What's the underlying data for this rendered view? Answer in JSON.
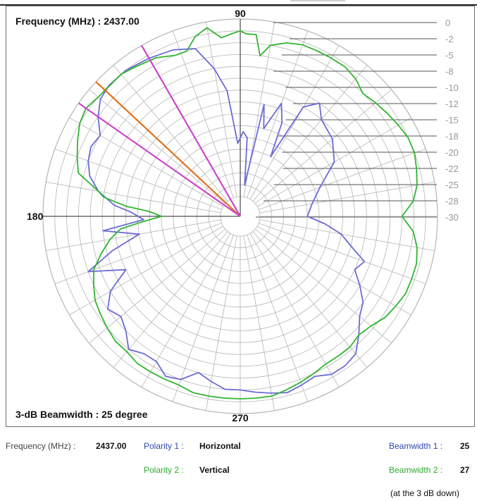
{
  "header": {
    "frequency_label": "Frequency (MHz) : 2437.00",
    "beamwidth_label": "3-dB Beamwidth : 25  degree"
  },
  "chart_data": {
    "type": "polar",
    "angle_labels": {
      "top": "90",
      "left": "180",
      "bottom": "270"
    },
    "radial_ticks": [
      "0",
      "-2",
      "-5",
      "-8",
      "-10",
      "-12",
      "-15",
      "-18",
      "-20",
      "-22",
      "-25",
      "-28",
      "-30"
    ],
    "radial_range": [
      -30,
      0
    ],
    "angular_grid_step_deg": 10,
    "series": [
      {
        "color": "#6b6bd6",
        "points": [
          [
            0,
            -22
          ],
          [
            10,
            -21
          ],
          [
            20,
            -19
          ],
          [
            30,
            -15
          ],
          [
            40,
            -13
          ],
          [
            50,
            -12
          ],
          [
            55,
            -10
          ],
          [
            60,
            -12
          ],
          [
            63,
            -22
          ],
          [
            66,
            -16
          ],
          [
            70,
            -13
          ],
          [
            75,
            -18
          ],
          [
            78,
            -14
          ],
          [
            82,
            -28
          ],
          [
            85,
            -20
          ],
          [
            88,
            -19
          ],
          [
            92,
            -21
          ],
          [
            96,
            -12
          ],
          [
            100,
            -8
          ],
          [
            105,
            -4
          ],
          [
            112,
            -3
          ],
          [
            120,
            -2.5
          ],
          [
            128,
            -2
          ],
          [
            135,
            -2
          ],
          [
            140,
            -2.5
          ],
          [
            145,
            -4
          ],
          [
            150,
            -6
          ],
          [
            155,
            -5.5
          ],
          [
            160,
            -6
          ],
          [
            165,
            -7
          ],
          [
            170,
            -9
          ],
          [
            175,
            -12
          ],
          [
            178,
            -15
          ],
          [
            182,
            -17
          ],
          [
            186,
            -10
          ],
          [
            190,
            -16
          ],
          [
            195,
            -11
          ],
          [
            200,
            -6
          ],
          [
            205,
            -12
          ],
          [
            210,
            -8
          ],
          [
            215,
            -6
          ],
          [
            220,
            -7
          ],
          [
            225,
            -6
          ],
          [
            230,
            -4
          ],
          [
            235,
            -5
          ],
          [
            240,
            -5
          ],
          [
            245,
            -3.5
          ],
          [
            250,
            -4
          ],
          [
            255,
            -6
          ],
          [
            260,
            -5
          ],
          [
            265,
            -4
          ],
          [
            270,
            -4
          ],
          [
            275,
            -3.5
          ],
          [
            280,
            -3
          ],
          [
            285,
            -2.5
          ],
          [
            290,
            -3
          ],
          [
            295,
            -3.5
          ],
          [
            300,
            -2.5
          ],
          [
            305,
            -2.5
          ],
          [
            310,
            -3
          ],
          [
            315,
            -5
          ],
          [
            320,
            -7
          ],
          [
            325,
            -8
          ],
          [
            330,
            -10
          ],
          [
            335,
            -12
          ],
          [
            340,
            -11
          ],
          [
            345,
            -14
          ],
          [
            350,
            -16
          ],
          [
            355,
            -19
          ],
          [
            360,
            -22
          ]
        ]
      },
      {
        "color": "#2fb52f",
        "points": [
          [
            0,
            -6
          ],
          [
            5,
            -4
          ],
          [
            10,
            -3
          ],
          [
            15,
            -2.5
          ],
          [
            20,
            -2
          ],
          [
            25,
            -2
          ],
          [
            30,
            -2.5
          ],
          [
            35,
            -3
          ],
          [
            40,
            -3.5
          ],
          [
            45,
            -4
          ],
          [
            50,
            -3
          ],
          [
            55,
            -2.5
          ],
          [
            60,
            -2.5
          ],
          [
            65,
            -2.5
          ],
          [
            70,
            -2.5
          ],
          [
            75,
            -3
          ],
          [
            80,
            -4
          ],
          [
            83,
            -6
          ],
          [
            85,
            -2.5
          ],
          [
            88,
            -2.5
          ],
          [
            90,
            -2
          ],
          [
            93,
            -2.5
          ],
          [
            96,
            -3
          ],
          [
            100,
            -1
          ],
          [
            104,
            -2
          ],
          [
            108,
            -4
          ],
          [
            112,
            -4
          ],
          [
            118,
            -3
          ],
          [
            125,
            -2.5
          ],
          [
            130,
            -2
          ],
          [
            140,
            -2
          ],
          [
            145,
            -1.5
          ],
          [
            150,
            -2
          ],
          [
            155,
            -3
          ],
          [
            160,
            -4
          ],
          [
            165,
            -5
          ],
          [
            170,
            -9
          ],
          [
            172,
            -10
          ],
          [
            175,
            -14
          ],
          [
            177,
            -18
          ],
          [
            180,
            -20
          ],
          [
            183,
            -17
          ],
          [
            186,
            -13
          ],
          [
            190,
            -11
          ],
          [
            195,
            -9
          ],
          [
            200,
            -7
          ],
          [
            205,
            -6
          ],
          [
            210,
            -5
          ],
          [
            215,
            -4.5
          ],
          [
            220,
            -4
          ],
          [
            225,
            -3.5
          ],
          [
            230,
            -3.5
          ],
          [
            235,
            -3
          ],
          [
            240,
            -3
          ],
          [
            245,
            -3
          ],
          [
            250,
            -3
          ],
          [
            255,
            -2.5
          ],
          [
            260,
            -2.5
          ],
          [
            265,
            -2.5
          ],
          [
            270,
            -2.5
          ],
          [
            275,
            -2.5
          ],
          [
            280,
            -2.5
          ],
          [
            285,
            -3
          ],
          [
            290,
            -3.5
          ],
          [
            295,
            -4
          ],
          [
            300,
            -4.5
          ],
          [
            305,
            -4.5
          ],
          [
            310,
            -4.5
          ],
          [
            315,
            -5
          ],
          [
            320,
            -4.5
          ],
          [
            325,
            -3.5
          ],
          [
            330,
            -3
          ],
          [
            335,
            -2.5
          ],
          [
            340,
            -2.5
          ],
          [
            345,
            -2.5
          ],
          [
            350,
            -3
          ],
          [
            355,
            -4
          ],
          [
            360,
            -6
          ]
        ]
      }
    ],
    "beam_lines": [
      {
        "color": "#cc44cc",
        "angle": 120
      },
      {
        "color": "#e0701a",
        "angle": 137
      },
      {
        "color": "#cc44cc",
        "angle": 145
      }
    ]
  },
  "footer": {
    "freq_key": "Frequency (MHz) :",
    "freq_val": "2437.00",
    "pol1_key": "Polarity 1 :",
    "pol1_val": "Horizontal",
    "pol2_key": "Polarity 2 :",
    "pol2_val": "Vertical",
    "bw1_key": "Beamwidth 1 :",
    "bw1_val": "25",
    "bw2_key": "Beamwidth 2 :",
    "bw2_val": "27",
    "note": "(at the  3  dB down)"
  }
}
